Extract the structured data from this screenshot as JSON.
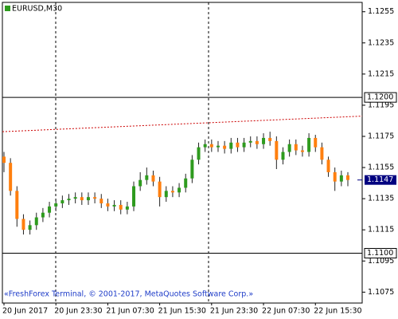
{
  "chart_data": {
    "type": "candlestick",
    "title": "EURUSD,M30",
    "footer": "«FreshForex Terminal, © 2001-2017, MetaQuotes Software Corp.»",
    "categories": [
      "20 Jun 2017",
      null,
      null,
      null,
      null,
      null,
      null,
      null,
      "20 Jun 23:30",
      null,
      null,
      null,
      null,
      null,
      null,
      null,
      "21 Jun 07:30",
      null,
      null,
      null,
      null,
      null,
      null,
      null,
      "21 Jun 15:30",
      null,
      null,
      null,
      null,
      null,
      null,
      null,
      "21 Jun 23:30",
      null,
      null,
      null,
      null,
      null,
      null,
      null,
      "22 Jun 07:30",
      null,
      null,
      null,
      null,
      null,
      null,
      null,
      "22 Jun 15:30",
      null,
      null,
      null,
      null,
      null
    ],
    "open": [
      1.1162,
      1.1158,
      1.114,
      1.1122,
      1.1115,
      1.1118,
      1.1123,
      1.1126,
      1.113,
      1.1132,
      1.1134,
      1.1135,
      1.1136,
      1.1134,
      1.1136,
      1.1135,
      1.1132,
      1.113,
      1.1131,
      1.1128,
      1.113,
      1.1143,
      1.1147,
      1.115,
      1.1146,
      1.1136,
      1.114,
      1.1139,
      1.1142,
      1.1148,
      1.116,
      1.1168,
      1.117,
      1.1168,
      1.1169,
      1.1167,
      1.1171,
      1.1168,
      1.1171,
      1.1172,
      1.117,
      1.1174,
      1.1172,
      1.116,
      1.1165,
      1.117,
      1.1166,
      1.1165,
      1.1174,
      1.1168,
      1.116,
      1.1152,
      1.1146,
      1.115
    ],
    "high": [
      1.1165,
      1.1161,
      1.1143,
      1.1125,
      1.1121,
      1.1126,
      1.1129,
      1.1133,
      1.1135,
      1.1137,
      1.1138,
      1.1139,
      1.1139,
      1.1139,
      1.1139,
      1.1138,
      1.1135,
      1.1134,
      1.1134,
      1.1133,
      1.1146,
      1.1152,
      1.1155,
      1.1153,
      1.1149,
      1.1143,
      1.1143,
      1.1145,
      1.1151,
      1.1163,
      1.1171,
      1.1173,
      1.1173,
      1.1172,
      1.1172,
      1.1174,
      1.1174,
      1.1174,
      1.1175,
      1.1175,
      1.1177,
      1.1178,
      1.1175,
      1.1168,
      1.1173,
      1.1173,
      1.1169,
      1.1177,
      1.1176,
      1.1171,
      1.1162,
      1.1155,
      1.1153,
      1.1152
    ],
    "low": [
      1.1152,
      1.1137,
      1.1117,
      1.1112,
      1.1112,
      1.1115,
      1.112,
      1.1123,
      1.1127,
      1.1129,
      1.1131,
      1.1132,
      1.1131,
      1.1131,
      1.1132,
      1.1129,
      1.1127,
      1.1127,
      1.1125,
      1.1125,
      1.1127,
      1.114,
      1.1144,
      1.1143,
      1.113,
      1.1133,
      1.1136,
      1.1136,
      1.1139,
      1.1145,
      1.1157,
      1.1165,
      1.1165,
      1.1165,
      1.1164,
      1.1164,
      1.1165,
      1.1165,
      1.1168,
      1.1167,
      1.1167,
      1.1169,
      1.1154,
      1.1157,
      1.1162,
      1.1163,
      1.1162,
      1.1162,
      1.1165,
      1.1157,
      1.1149,
      1.114,
      1.1143,
      1.1143
    ],
    "close": [
      1.1158,
      1.114,
      1.1122,
      1.1115,
      1.1118,
      1.1123,
      1.1126,
      1.113,
      1.1132,
      1.1134,
      1.1135,
      1.1136,
      1.1134,
      1.1136,
      1.1135,
      1.1132,
      1.113,
      1.1131,
      1.1128,
      1.113,
      1.1143,
      1.1147,
      1.115,
      1.1146,
      1.1136,
      1.114,
      1.1139,
      1.1142,
      1.1148,
      1.116,
      1.1168,
      1.117,
      1.1168,
      1.1169,
      1.1167,
      1.1171,
      1.1168,
      1.1171,
      1.1172,
      1.117,
      1.1174,
      1.1172,
      1.116,
      1.1165,
      1.117,
      1.1166,
      1.1165,
      1.1174,
      1.1168,
      1.116,
      1.1152,
      1.1146,
      1.115,
      1.1147
    ],
    "up_color": "#2e9b1e",
    "down_color": "#ff7f0e",
    "ylim": [
      1.1068,
      1.1261
    ],
    "yticks": [
      1.1255,
      1.1235,
      1.1215,
      1.1195,
      1.1175,
      1.1155,
      1.1135,
      1.1115,
      1.1095,
      1.1075
    ],
    "levels": [
      {
        "value": 1.12,
        "label": "1.1200"
      },
      {
        "value": 1.11,
        "label": "1.1100"
      }
    ],
    "current_price": 1.1147,
    "trendline": {
      "color": "#cc0000",
      "values": [
        1.1178,
        1.1188
      ]
    }
  }
}
